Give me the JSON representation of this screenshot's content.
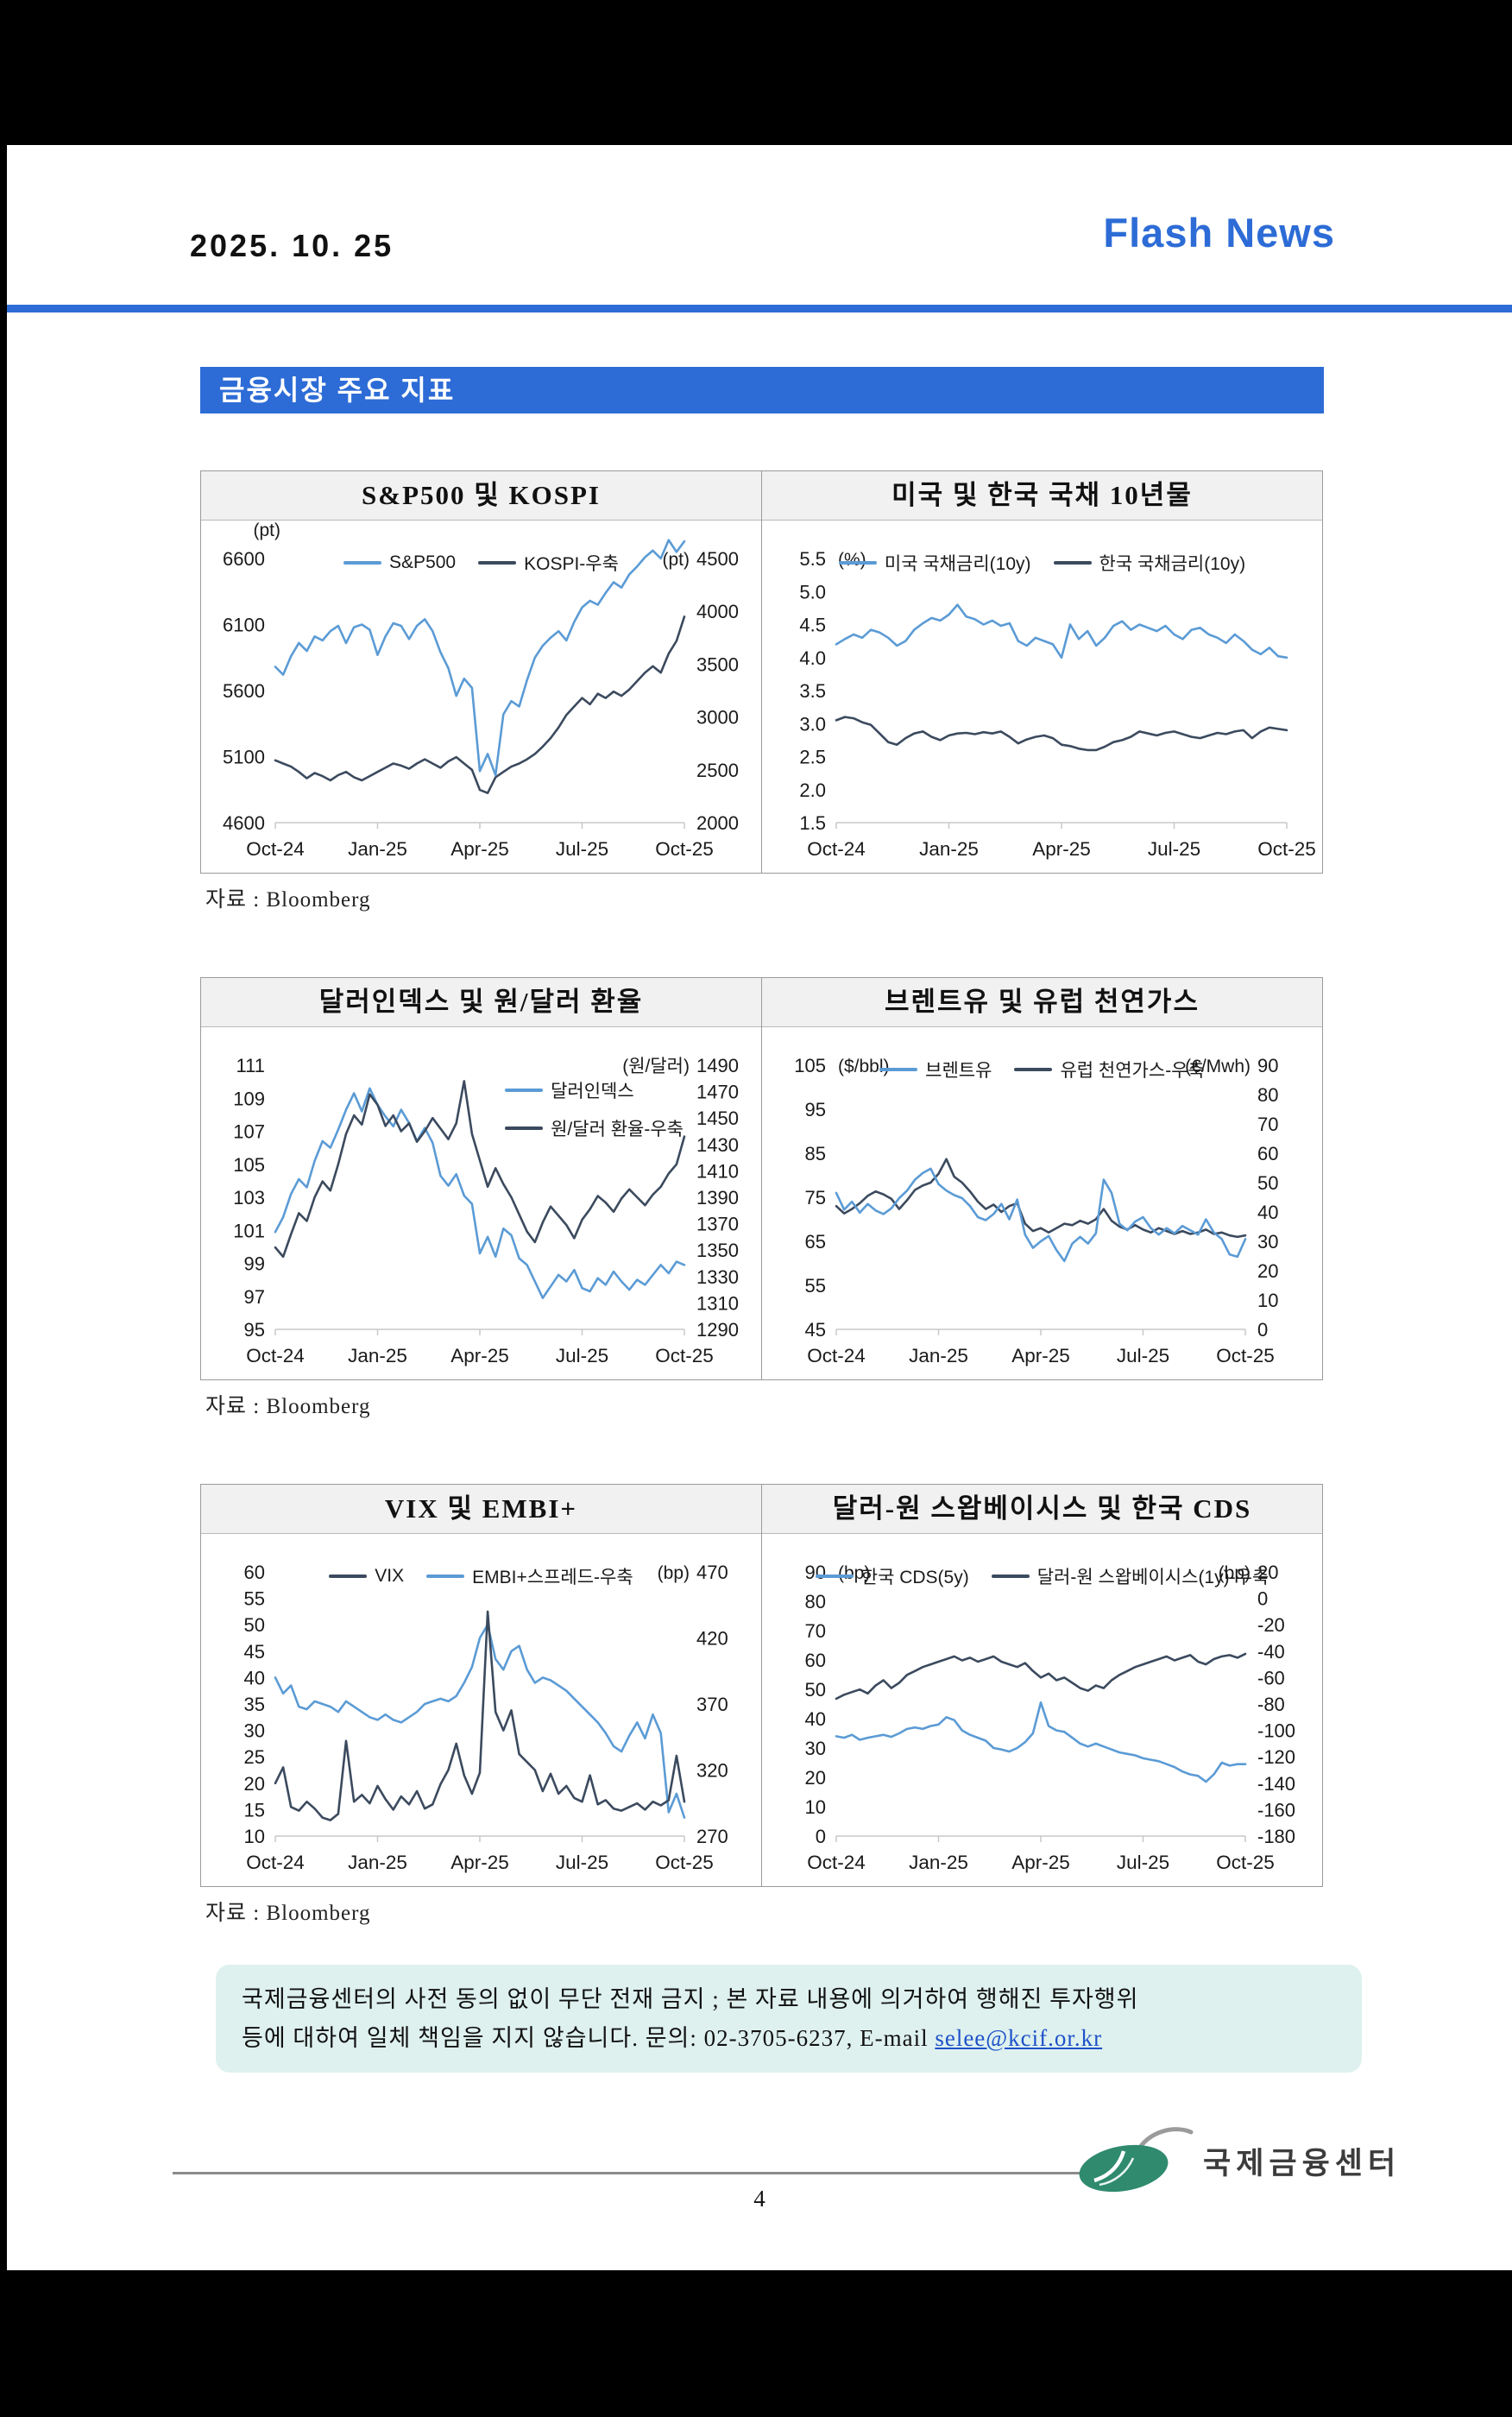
{
  "page": {
    "date": "2025. 10. 25",
    "brand": "Flash News",
    "section_title": "금융시장 주요 지표",
    "source_label": "자료 : Bloomberg",
    "page_number": "4",
    "footer_logo_text": "국제금융센터",
    "disclaimer": {
      "line1": "국제금융센터의 사전 동의 없이 무단 전재 금지 ; 본 자료 내용에 의거하여 행해진 투자행위",
      "line2_prefix": "등에 대하여 일체 책임을 지지 않습니다. 문의: 02-3705-6237, E-mail ",
      "email": "selee@kcif.or.kr"
    }
  },
  "colors": {
    "accent_blue": "#2d6cd6",
    "series_blue": "#5b9bd5",
    "series_dark": "#3b4a5e",
    "logo_green": "#2f8a6e"
  },
  "chart_data": [
    {
      "type": "line",
      "title": "S&P500 및 KOSPI",
      "x_ticks": [
        "Oct-24",
        "Jan-25",
        "Apr-25",
        "Jul-25",
        "Oct-25"
      ],
      "left_axis": {
        "ticks": [
          "6600",
          "6100",
          "5600",
          "5100",
          "4600"
        ],
        "range": [
          4600,
          6600
        ],
        "unit": "(pt)",
        "unit_pos": "above"
      },
      "right_axis": {
        "ticks": [
          "4500",
          "4000",
          "3500",
          "3000",
          "2500",
          "2000"
        ],
        "range": [
          2000,
          4500
        ],
        "unit": "(pt)"
      },
      "legend": {
        "mode": "row",
        "items": [
          {
            "label": "S&P500",
            "color": "blue"
          },
          {
            "label": "KOSPI-우축",
            "color": "dark"
          }
        ]
      },
      "series": [
        {
          "name": "KOSPI",
          "axis": "right",
          "color": "dark",
          "values": [
            2590,
            2560,
            2530,
            2480,
            2420,
            2470,
            2440,
            2400,
            2450,
            2480,
            2430,
            2400,
            2440,
            2480,
            2520,
            2560,
            2540,
            2510,
            2560,
            2600,
            2560,
            2520,
            2580,
            2620,
            2560,
            2500,
            2310,
            2280,
            2430,
            2480,
            2530,
            2560,
            2600,
            2650,
            2720,
            2800,
            2900,
            3020,
            3100,
            3180,
            3120,
            3220,
            3180,
            3240,
            3200,
            3260,
            3340,
            3420,
            3480,
            3420,
            3600,
            3720,
            3950
          ]
        },
        {
          "name": "S&P500",
          "axis": "left",
          "color": "blue",
          "values": [
            5780,
            5720,
            5860,
            5960,
            5900,
            6010,
            5980,
            6050,
            6090,
            5960,
            6080,
            6100,
            6060,
            5870,
            6010,
            6110,
            6090,
            5990,
            6090,
            6140,
            6050,
            5890,
            5770,
            5560,
            5690,
            5620,
            4990,
            5120,
            4960,
            5420,
            5520,
            5480,
            5680,
            5850,
            5940,
            6000,
            6050,
            5980,
            6120,
            6230,
            6280,
            6250,
            6340,
            6420,
            6380,
            6480,
            6540,
            6610,
            6660,
            6600,
            6740,
            6650,
            6730
          ]
        }
      ]
    },
    {
      "type": "line",
      "title": "미국 및 한국 국채 10년물",
      "x_ticks": [
        "Oct-24",
        "Jan-25",
        "Apr-25",
        "Jul-25",
        "Oct-25"
      ],
      "left_axis": {
        "ticks": [
          "5.5",
          "5.0",
          "4.5",
          "4.0",
          "3.5",
          "3.0",
          "2.5",
          "2.0",
          "1.5"
        ],
        "range": [
          1.5,
          5.5
        ],
        "unit": "(%)",
        "unit_pos": "inline"
      },
      "right_axis": null,
      "legend": {
        "mode": "row",
        "items": [
          {
            "label": "미국 국채금리(10y)",
            "color": "blue"
          },
          {
            "label": "한국 국채금리(10y)",
            "color": "dark"
          }
        ]
      },
      "series": [
        {
          "name": "한국 국채금리(10y)",
          "axis": "left",
          "color": "dark",
          "values": [
            3.05,
            3.1,
            3.08,
            3.02,
            2.98,
            2.85,
            2.72,
            2.68,
            2.78,
            2.85,
            2.88,
            2.8,
            2.75,
            2.82,
            2.85,
            2.86,
            2.84,
            2.87,
            2.85,
            2.88,
            2.8,
            2.7,
            2.76,
            2.8,
            2.82,
            2.78,
            2.68,
            2.66,
            2.62,
            2.6,
            2.6,
            2.65,
            2.72,
            2.75,
            2.8,
            2.88,
            2.85,
            2.82,
            2.86,
            2.88,
            2.84,
            2.8,
            2.78,
            2.82,
            2.86,
            2.84,
            2.88,
            2.9,
            2.78,
            2.88,
            2.94,
            2.92,
            2.9
          ]
        },
        {
          "name": "미국 국채금리(10y)",
          "axis": "left",
          "color": "blue",
          "values": [
            4.2,
            4.28,
            4.35,
            4.3,
            4.42,
            4.38,
            4.3,
            4.18,
            4.25,
            4.42,
            4.52,
            4.6,
            4.56,
            4.65,
            4.8,
            4.62,
            4.58,
            4.5,
            4.56,
            4.48,
            4.52,
            4.25,
            4.18,
            4.3,
            4.25,
            4.2,
            4.0,
            4.5,
            4.28,
            4.4,
            4.18,
            4.3,
            4.48,
            4.55,
            4.42,
            4.5,
            4.45,
            4.4,
            4.48,
            4.35,
            4.28,
            4.42,
            4.45,
            4.35,
            4.3,
            4.22,
            4.35,
            4.25,
            4.12,
            4.05,
            4.15,
            4.02,
            4.0
          ]
        }
      ]
    },
    {
      "type": "line",
      "title": "달러인덱스 및 원/달러 환율",
      "x_ticks": [
        "Oct-24",
        "Jan-25",
        "Apr-25",
        "Jul-25",
        "Oct-25"
      ],
      "left_axis": {
        "ticks": [
          "111",
          "109",
          "107",
          "105",
          "103",
          "101",
          "99",
          "97",
          "95"
        ],
        "range": [
          95,
          111
        ],
        "unit": null,
        "unit_pos": null
      },
      "right_axis": {
        "ticks": [
          "1490",
          "1470",
          "1450",
          "1430",
          "1410",
          "1390",
          "1370",
          "1350",
          "1330",
          "1310",
          "1290"
        ],
        "range": [
          1290,
          1490
        ],
        "unit": "(원/달러)"
      },
      "legend": {
        "mode": "stack",
        "items": [
          {
            "label": "달러인덱스",
            "color": "blue"
          },
          {
            "label": "원/달러 환율-우축",
            "color": "dark"
          }
        ]
      },
      "series": [
        {
          "name": "달러인덱스",
          "axis": "left",
          "color": "blue",
          "values": [
            100.9,
            101.8,
            103.2,
            104.1,
            103.6,
            105.2,
            106.4,
            106.0,
            107.1,
            108.3,
            109.3,
            108.2,
            109.6,
            108.6,
            107.9,
            107.3,
            108.3,
            107.5,
            106.4,
            107.2,
            106.3,
            104.3,
            103.7,
            104.4,
            103.1,
            102.6,
            99.6,
            100.6,
            99.4,
            101.1,
            100.7,
            99.3,
            98.9,
            97.9,
            96.9,
            97.6,
            98.3,
            97.9,
            98.6,
            97.5,
            97.3,
            98.1,
            97.7,
            98.5,
            97.9,
            97.4,
            98.0,
            97.7,
            98.3,
            98.9,
            98.4,
            99.1,
            98.9
          ]
        },
        {
          "name": "원/달러 환율",
          "axis": "right",
          "color": "dark",
          "values": [
            1352,
            1345,
            1362,
            1378,
            1372,
            1390,
            1402,
            1395,
            1415,
            1438,
            1452,
            1445,
            1468,
            1460,
            1444,
            1452,
            1440,
            1446,
            1432,
            1440,
            1450,
            1442,
            1434,
            1446,
            1478,
            1438,
            1418,
            1398,
            1412,
            1400,
            1390,
            1377,
            1364,
            1356,
            1371,
            1383,
            1376,
            1369,
            1359,
            1373,
            1381,
            1391,
            1386,
            1379,
            1389,
            1396,
            1390,
            1384,
            1392,
            1398,
            1408,
            1415,
            1436
          ]
        }
      ]
    },
    {
      "type": "line",
      "title": "브렌트유 및 유럽 천연가스",
      "x_ticks": [
        "Oct-24",
        "Jan-25",
        "Apr-25",
        "Jul-25",
        "Oct-25"
      ],
      "left_axis": {
        "ticks": [
          "105",
          "95",
          "85",
          "75",
          "65",
          "55",
          "45"
        ],
        "range": [
          45,
          105
        ],
        "unit": "($/bbl)",
        "unit_pos": "inline"
      },
      "right_axis": {
        "ticks": [
          "90",
          "80",
          "70",
          "60",
          "50",
          "40",
          "30",
          "20",
          "10",
          "0"
        ],
        "range": [
          0,
          90
        ],
        "unit": "(€/Mwh)"
      },
      "legend": {
        "mode": "row",
        "items": [
          {
            "label": "브렌트유",
            "color": "blue"
          },
          {
            "label": "유럽 천연가스-우축",
            "color": "dark"
          }
        ]
      },
      "series": [
        {
          "name": "유럽 천연가스",
          "axis": "right",
          "color": "dark",
          "values": [
            42,
            39.5,
            41,
            43,
            45.5,
            47,
            46,
            44.5,
            41,
            44,
            47.5,
            49,
            50,
            53,
            58,
            52,
            50,
            47,
            43.5,
            41,
            42.5,
            40,
            42,
            43,
            36,
            33.5,
            34.5,
            33,
            34.5,
            36,
            35.5,
            37,
            36,
            37.5,
            41,
            37,
            35,
            34,
            35.5,
            34,
            33,
            34.5,
            33.5,
            32.5,
            33.5,
            32.5,
            33,
            34,
            32.5,
            33,
            32,
            31.5,
            32
          ]
        },
        {
          "name": "브렌트유",
          "axis": "left",
          "color": "blue",
          "values": [
            76.0,
            72.2,
            74.0,
            71.5,
            73.5,
            72.0,
            71.2,
            72.5,
            74.8,
            76.5,
            79.0,
            80.5,
            81.5,
            78.0,
            76.5,
            75.5,
            74.8,
            73.0,
            70.5,
            69.8,
            71.2,
            73.5,
            70.0,
            74.5,
            66.5,
            63.5,
            65.0,
            66.2,
            63.0,
            60.5,
            64.5,
            66.0,
            64.5,
            66.8,
            79.0,
            76.0,
            69.0,
            67.5,
            69.5,
            70.5,
            68.0,
            66.5,
            68.0,
            66.8,
            68.5,
            67.5,
            66.5,
            70.0,
            67.0,
            65.5,
            62.0,
            61.5,
            65.5
          ]
        }
      ]
    },
    {
      "type": "line",
      "title": "VIX 및 EMBI+",
      "x_ticks": [
        "Oct-24",
        "Jan-25",
        "Apr-25",
        "Jul-25",
        "Oct-25"
      ],
      "left_axis": {
        "ticks": [
          "60",
          "55",
          "50",
          "45",
          "40",
          "35",
          "30",
          "25",
          "20",
          "15",
          "10"
        ],
        "range": [
          10,
          60
        ],
        "unit": null,
        "unit_pos": null
      },
      "right_axis": {
        "ticks": [
          "470",
          "420",
          "370",
          "320",
          "270"
        ],
        "range": [
          270,
          470
        ],
        "unit": "(bp)"
      },
      "legend": {
        "mode": "row",
        "items": [
          {
            "label": "VIX",
            "color": "dark"
          },
          {
            "label": "EMBI+스프레드-우축",
            "color": "blue"
          }
        ]
      },
      "series": [
        {
          "name": "EMBI+스프레드",
          "axis": "right",
          "color": "blue",
          "values": [
            390,
            378,
            384,
            368,
            366,
            372,
            370,
            368,
            364,
            372,
            368,
            364,
            360,
            358,
            362,
            358,
            356,
            360,
            364,
            370,
            372,
            374,
            372,
            376,
            386,
            398,
            420,
            430,
            404,
            396,
            410,
            414,
            396,
            386,
            390,
            388,
            384,
            380,
            374,
            368,
            362,
            356,
            348,
            338,
            334,
            346,
            356,
            344,
            362,
            348,
            288,
            302,
            284
          ]
        },
        {
          "name": "VIX",
          "axis": "left",
          "color": "dark",
          "values": [
            20.0,
            23.0,
            15.5,
            14.8,
            16.5,
            15.2,
            13.5,
            13.0,
            14.2,
            28.0,
            16.5,
            17.8,
            16.2,
            19.5,
            17.0,
            15.0,
            17.5,
            16.0,
            18.5,
            15.2,
            16.0,
            19.8,
            22.5,
            27.5,
            21.5,
            18.0,
            22.0,
            52.5,
            33.5,
            30.0,
            33.8,
            25.5,
            24.0,
            22.5,
            18.5,
            21.8,
            18.0,
            19.5,
            17.2,
            16.5,
            21.5,
            16.0,
            16.8,
            15.2,
            14.8,
            15.5,
            16.2,
            15.0,
            16.5,
            15.8,
            16.8,
            25.2,
            16.5
          ]
        }
      ]
    },
    {
      "type": "line",
      "title": "달러-원 스왑베이시스 및 한국 CDS",
      "x_ticks": [
        "Oct-24",
        "Jan-25",
        "Apr-25",
        "Jul-25",
        "Oct-25"
      ],
      "left_axis": {
        "ticks": [
          "90",
          "80",
          "70",
          "60",
          "50",
          "40",
          "30",
          "20",
          "10",
          "0"
        ],
        "range": [
          0,
          90
        ],
        "unit": "(bp)",
        "unit_pos": "inline"
      },
      "right_axis": {
        "ticks": [
          "20",
          "0",
          "-20",
          "-40",
          "-60",
          "-80",
          "-100",
          "-120",
          "-140",
          "-160",
          "-180"
        ],
        "range": [
          -180,
          20
        ],
        "unit": "(bp)"
      },
      "legend": {
        "mode": "row",
        "items": [
          {
            "label": "한국 CDS(5y)",
            "color": "blue"
          },
          {
            "label": "달러-원 스왑베이시스(1y)-우축",
            "color": "dark"
          }
        ]
      },
      "series": [
        {
          "name": "한국 CDS(5y)",
          "axis": "left",
          "color": "blue",
          "values": [
            34,
            33.5,
            34.5,
            32.8,
            33.5,
            34,
            34.5,
            33.8,
            35,
            36.5,
            37,
            36.5,
            37.5,
            38,
            40.5,
            39.5,
            36,
            34.5,
            33.5,
            32.5,
            30,
            29.5,
            28.8,
            30,
            32,
            35,
            45.5,
            37.5,
            36,
            35.5,
            33.5,
            31.5,
            30.5,
            31.5,
            30.5,
            29.5,
            28.5,
            28,
            27.5,
            26.5,
            26,
            25.5,
            24.5,
            23.5,
            22,
            21,
            20.5,
            18.5,
            21,
            25,
            24,
            24.5,
            24.5
          ]
        },
        {
          "name": "달러-원 스왑베이시스(1y)",
          "axis": "right",
          "color": "dark",
          "values": [
            -76,
            -73,
            -71,
            -69,
            -72,
            -66,
            -62,
            -68,
            -64,
            -58,
            -55,
            -52,
            -50,
            -48,
            -46,
            -44,
            -47,
            -45,
            -48,
            -46,
            -44,
            -48,
            -50,
            -52,
            -49,
            -55,
            -60,
            -57,
            -62,
            -60,
            -64,
            -68,
            -70,
            -66,
            -68,
            -62,
            -58,
            -55,
            -52,
            -50,
            -48,
            -46,
            -44,
            -47,
            -45,
            -43,
            -48,
            -50,
            -46,
            -44,
            -43,
            -45,
            -42
          ]
        }
      ]
    }
  ]
}
